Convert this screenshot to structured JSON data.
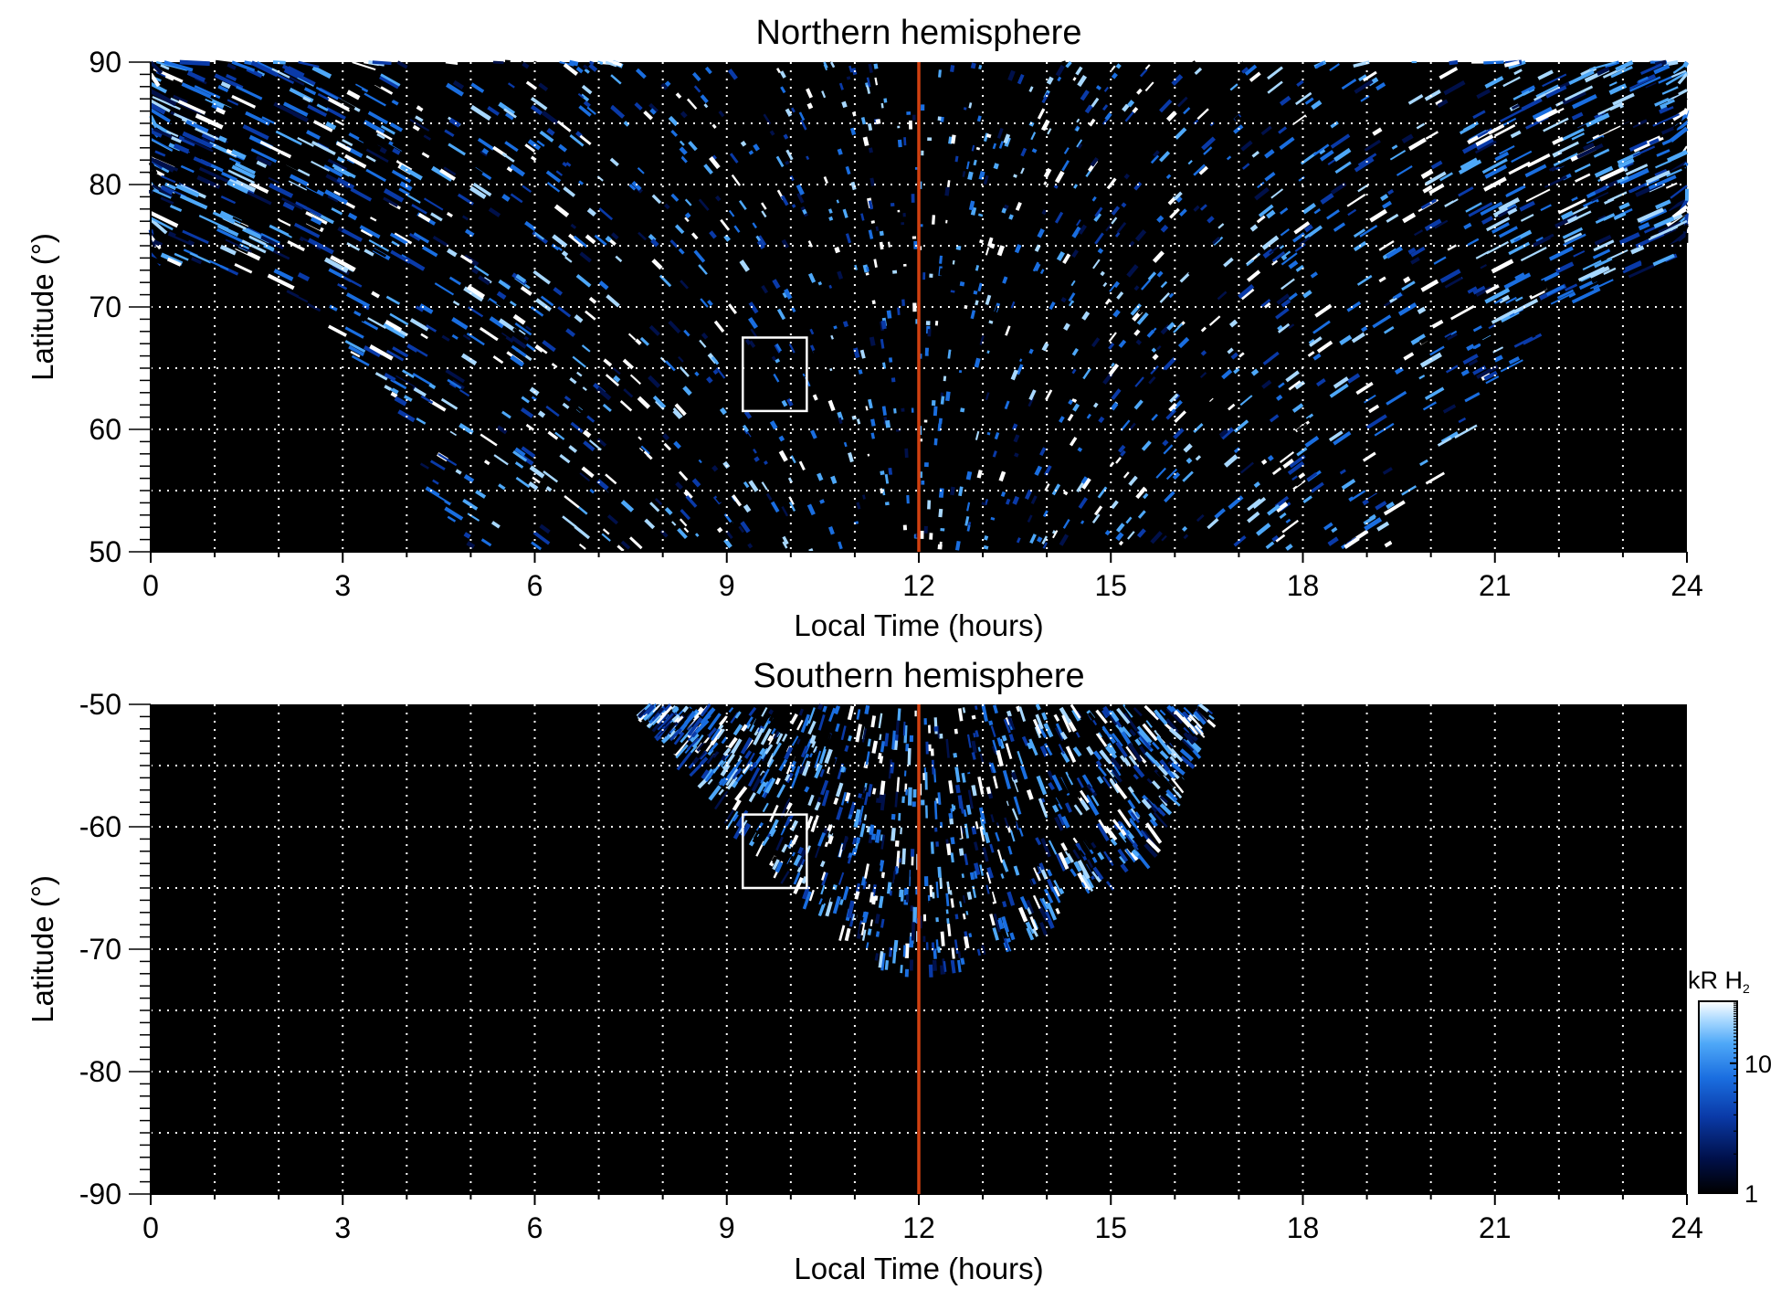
{
  "chart_data": [
    {
      "type": "heatmap",
      "title": "Northern hemisphere",
      "xlabel": "Local Time (hours)",
      "ylabel": "Latitude (°)",
      "xlim": [
        0,
        24
      ],
      "ylim": [
        50,
        90
      ],
      "xticks": [
        "0",
        "3",
        "6",
        "9",
        "12",
        "15",
        "18",
        "21",
        "24"
      ],
      "yticks": [
        "50",
        "60",
        "70",
        "80",
        "90"
      ],
      "grid": true,
      "reference_line": {
        "x": 12,
        "color": "#d04010"
      },
      "highlight_box": {
        "x": [
          9.25,
          10.25
        ],
        "y": [
          61.5,
          67.5
        ]
      },
      "coverage": {
        "description": "auroral H2 emission brightness map",
        "lowest_latitude_by_local_time": [
          [
            0,
            73.5
          ],
          [
            1,
            73
          ],
          [
            2,
            71
          ],
          [
            3,
            67.5
          ],
          [
            4,
            60
          ],
          [
            4.9,
            50
          ],
          [
            19.4,
            50
          ],
          [
            20.5,
            60
          ],
          [
            21.5,
            67
          ],
          [
            22.5,
            71
          ],
          [
            23.5,
            73
          ],
          [
            24,
            73.5
          ]
        ]
      }
    },
    {
      "type": "heatmap",
      "title": "Southern hemisphere",
      "xlabel": "Local Time (hours)",
      "ylabel": "Latitude (°)",
      "xlim": [
        0,
        24
      ],
      "ylim": [
        -90,
        -50
      ],
      "xticks": [
        "0",
        "3",
        "6",
        "9",
        "12",
        "15",
        "18",
        "21",
        "24"
      ],
      "yticks": [
        "-50",
        "-60",
        "-70",
        "-80",
        "-90"
      ],
      "grid": true,
      "reference_line": {
        "x": 12,
        "color": "#d04010"
      },
      "highlight_box": {
        "x": [
          9.25,
          10.25
        ],
        "y": [
          -65,
          -59
        ]
      },
      "coverage": {
        "description": "auroral H2 emission brightness map",
        "boundary_by_local_time": [
          [
            7.8,
            -50
          ],
          [
            8.6,
            -55
          ],
          [
            9.3,
            -60
          ],
          [
            10.2,
            -65
          ],
          [
            11.0,
            -70
          ],
          [
            12.0,
            -72
          ],
          [
            13.4,
            -70
          ],
          [
            14.6,
            -66
          ],
          [
            15.5,
            -62
          ],
          [
            16.0,
            -56
          ],
          [
            16.4,
            -50
          ]
        ]
      }
    }
  ],
  "colorbar": {
    "label_main": "kR H",
    "label_sub": "2",
    "ticks": [
      "10",
      "1"
    ],
    "tick_values": [
      10,
      1
    ],
    "range": [
      1,
      30
    ],
    "scale": "log",
    "colors": [
      "#000000",
      "#00104a",
      "#0a3aa8",
      "#1a6ee0",
      "#4ea8f8",
      "#a8d8ff",
      "#ffffff"
    ]
  }
}
